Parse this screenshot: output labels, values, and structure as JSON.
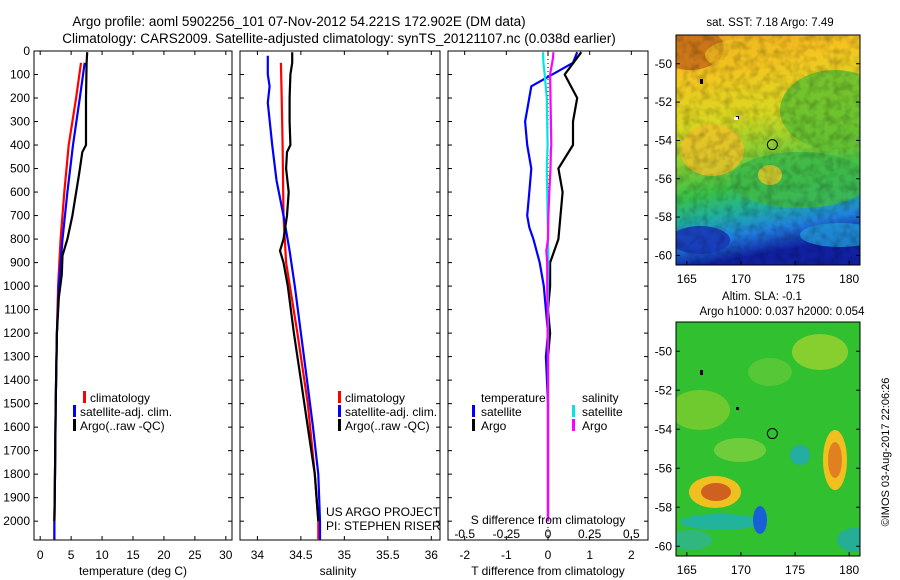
{
  "header": {
    "title_line1": "Argo profile: aoml 5902256_101 07-Nov-2012 54.221S 172.902E (DM data)",
    "title_line2": "Climatology: CARS2009. Satellite-adjusted climatology: synTS_20121107.nc (0.038d earlier)"
  },
  "project": {
    "line1": "US ARGO PROJECT",
    "line2": "PI: STEPHEN RISER"
  },
  "stamp": "©IMOS 03-Aug-2017 22:06:26",
  "colors": {
    "climatology": "#ff0000",
    "satellite": "#0000ff",
    "argo": "#000000",
    "sat_diff_T": "#00e5e5",
    "argo_diff_T": "#ff00ff"
  },
  "legend_profile": {
    "climatology": "climatology",
    "satellite": "satellite-adj. clim.",
    "argo": "Argo(..raw -QC)"
  },
  "legend_diff": {
    "temperature": "temperature",
    "salinity": "salinity",
    "satellite": "satellite",
    "argo": "Argo"
  },
  "chart_data": [
    {
      "type": "line",
      "name": "temperature-profile",
      "xlabel": "temperature (deg C)",
      "ylabel": "",
      "xlim": [
        -1,
        31
      ],
      "ylim": [
        2080,
        0
      ],
      "xticks": [
        "0",
        "5",
        "10",
        "15",
        "20",
        "25",
        "30"
      ],
      "yticks": [
        "0",
        "100",
        "200",
        "300",
        "400",
        "500",
        "600",
        "700",
        "800",
        "900",
        "1000",
        "1100",
        "1200",
        "1300",
        "1400",
        "1500",
        "1600",
        "1700",
        "1800",
        "1900",
        "2000"
      ],
      "series": [
        {
          "name": "climatology",
          "color": "#ff0000",
          "depth": [
            50,
            200,
            400,
            600,
            800,
            1000,
            1200,
            1500,
            1800,
            2000,
            2080
          ],
          "values": [
            6.6,
            5.8,
            4.6,
            3.9,
            3.3,
            2.9,
            2.7,
            2.5,
            2.4,
            2.3,
            2.3
          ]
        },
        {
          "name": "satellite-adj. clim.",
          "color": "#0000ff",
          "depth": [
            50,
            200,
            400,
            600,
            800,
            1000,
            1200,
            1500,
            1800,
            2000,
            2080
          ],
          "values": [
            7.2,
            6.4,
            5.3,
            4.4,
            3.6,
            3.0,
            2.7,
            2.5,
            2.4,
            2.3,
            2.3
          ]
        },
        {
          "name": "Argo(..raw -QC)",
          "color": "#000000",
          "depth": [
            5,
            50,
            200,
            400,
            430,
            520,
            700,
            800,
            870,
            950,
            1050,
            1200,
            1500,
            1800,
            2000
          ],
          "values": [
            7.6,
            7.5,
            7.4,
            7.4,
            6.8,
            6.3,
            5.2,
            4.4,
            3.6,
            3.5,
            3.0,
            2.7,
            2.5,
            2.4,
            2.3
          ]
        }
      ]
    },
    {
      "type": "line",
      "name": "salinity-profile",
      "xlabel": "salinity",
      "xlim": [
        33.8,
        36.1
      ],
      "ylim": [
        2080,
        0
      ],
      "xticks": [
        "34",
        "34.5",
        "35",
        "35.5",
        "36"
      ],
      "series": [
        {
          "name": "climatology",
          "color": "#ff0000",
          "depth": [
            50,
            200,
            400,
            700,
            900,
            1200,
            1500,
            1800,
            2000,
            2080
          ],
          "values": [
            34.27,
            34.28,
            34.29,
            34.3,
            34.33,
            34.46,
            34.58,
            34.66,
            34.7,
            34.7
          ]
        },
        {
          "name": "satellite-adj. clim.",
          "color": "#0000ff",
          "depth": [
            20,
            100,
            150,
            220,
            400,
            550,
            700,
            850,
            1000,
            1200,
            1400,
            1600,
            1800,
            2000,
            2080
          ],
          "values": [
            34.12,
            34.12,
            34.14,
            34.12,
            34.17,
            34.22,
            34.3,
            34.37,
            34.43,
            34.5,
            34.57,
            34.64,
            34.7,
            34.72,
            34.72
          ]
        },
        {
          "name": "Argo(..raw -QC)",
          "color": "#000000",
          "depth": [
            5,
            50,
            100,
            200,
            300,
            400,
            430,
            500,
            600,
            700,
            800,
            850,
            900,
            1000,
            1200,
            1400,
            1600,
            1800,
            2000
          ],
          "values": [
            34.4,
            34.4,
            34.38,
            34.37,
            34.37,
            34.38,
            34.34,
            34.33,
            34.36,
            34.34,
            34.3,
            34.26,
            34.3,
            34.35,
            34.42,
            34.5,
            34.58,
            34.66,
            34.7
          ]
        }
      ]
    },
    {
      "type": "line",
      "name": "difference-profile",
      "xlabel": "T difference from climatology",
      "top_axis_label": "S difference from climatology",
      "xlim": [
        -2.4,
        2.4
      ],
      "ylim": [
        2080,
        0
      ],
      "xticks": [
        "-2",
        "-1",
        "0",
        "1",
        "2"
      ],
      "sticks": [
        "-0.5",
        "-0.25",
        "0",
        "0.25",
        "0.5"
      ],
      "series": [
        {
          "name": "temperature satellite",
          "color": "#0000ff",
          "depth": [
            5,
            50,
            150,
            250,
            300,
            400,
            500,
            600,
            700,
            750,
            800,
            900,
            1000,
            1100,
            1200,
            1300,
            1500,
            1800,
            2000
          ],
          "values": [
            0.7,
            0.6,
            -0.4,
            -0.5,
            -0.55,
            -0.5,
            -0.4,
            -0.45,
            -0.5,
            -0.45,
            -0.35,
            -0.2,
            -0.1,
            -0.05,
            0.0,
            -0.05,
            0.0,
            0.0,
            0.0
          ]
        },
        {
          "name": "temperature Argo",
          "color": "#000000",
          "depth": [
            5,
            100,
            200,
            300,
            400,
            500,
            600,
            700,
            800,
            850,
            900,
            1000,
            1100,
            1200,
            1300,
            1500,
            1800,
            2000
          ],
          "values": [
            0.8,
            0.4,
            0.7,
            0.6,
            0.6,
            0.25,
            0.35,
            0.3,
            0.25,
            0.15,
            0.05,
            0.05,
            0.0,
            0.05,
            0.0,
            0.0,
            0.0,
            0.0
          ]
        },
        {
          "name": "salinity satellite",
          "color": "#00e5e5",
          "depth": [
            5,
            50,
            100,
            200,
            300,
            400,
            500,
            600,
            700,
            800,
            900,
            1000,
            1100,
            1200,
            1300,
            1500,
            1800,
            2000
          ],
          "values": [
            -0.12,
            -0.11,
            -0.08,
            -0.03,
            -0.02,
            -0.01,
            -0.03,
            -0.02,
            -0.01,
            0.0,
            0.01,
            0.0,
            0.0,
            0.0,
            0.0,
            0.0,
            0.0,
            0.0
          ]
        },
        {
          "name": "salinity Argo",
          "color": "#ff00ff",
          "depth": [
            5,
            30,
            100,
            200,
            300,
            400,
            420,
            500,
            600,
            700,
            800,
            850,
            900,
            1000,
            1100,
            1200,
            1300,
            1500,
            1800,
            2000
          ],
          "values": [
            0.13,
            0.12,
            0.05,
            0.06,
            0.07,
            0.08,
            0.07,
            0.06,
            0.03,
            0.01,
            0.0,
            -0.04,
            -0.02,
            -0.02,
            -0.01,
            -0.01,
            0.0,
            0.0,
            0.0,
            0.0
          ]
        }
      ]
    },
    {
      "type": "heatmap",
      "name": "sst-map",
      "title": "sat. SST: 7.18 Argo: 7.49",
      "xlim": [
        164,
        181
      ],
      "ylim": [
        -60.5,
        -48.5
      ],
      "xticks": [
        "165",
        "170",
        "175",
        "180"
      ],
      "yticks": [
        "-50",
        "-52",
        "-54",
        "-56",
        "-58",
        "-60"
      ],
      "argo_position": {
        "lon": 172.902,
        "lat": -54.221
      }
    },
    {
      "type": "heatmap",
      "name": "sla-map",
      "title": "Altim. SLA: -0.1",
      "subtitle": "Argo h1000: 0.037 h2000: 0.054",
      "xlim": [
        164,
        181
      ],
      "ylim": [
        -60.5,
        -48.5
      ],
      "xticks": [
        "165",
        "170",
        "175",
        "180"
      ],
      "yticks": [
        "-50",
        "-52",
        "-54",
        "-56",
        "-58",
        "-60"
      ],
      "argo_position": {
        "lon": 172.902,
        "lat": -54.221
      }
    }
  ]
}
